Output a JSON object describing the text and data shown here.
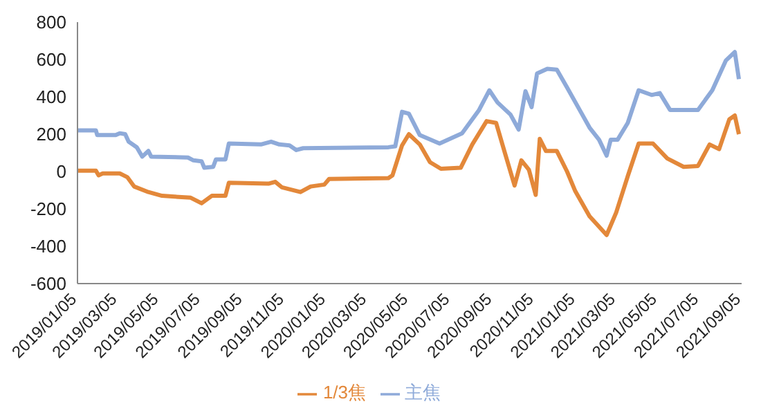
{
  "chart_data": {
    "type": "line",
    "ylim": [
      -600,
      800
    ],
    "yticks": [
      -600,
      -400,
      -200,
      0,
      200,
      400,
      600,
      800
    ],
    "xlim": [
      "2019-01-05",
      "2021-09-05"
    ],
    "xticks": [
      {
        "value": "2019-01-05",
        "label": "2019/01/05"
      },
      {
        "value": "2019-03-05",
        "label": "2019/03/05"
      },
      {
        "value": "2019-05-05",
        "label": "2019/05/05"
      },
      {
        "value": "2019-07-05",
        "label": "2019/07/05"
      },
      {
        "value": "2019-09-05",
        "label": "2019/09/05"
      },
      {
        "value": "2019-11-05",
        "label": "2019/11/05"
      },
      {
        "value": "2020-01-05",
        "label": "2020/01/05"
      },
      {
        "value": "2020-03-05",
        "label": "2020/03/05"
      },
      {
        "value": "2020-05-05",
        "label": "2020/05/05"
      },
      {
        "value": "2020-07-05",
        "label": "2020/07/05"
      },
      {
        "value": "2020-09-05",
        "label": "2020/09/05"
      },
      {
        "value": "2020-11-05",
        "label": "2020/11/05"
      },
      {
        "value": "2021-01-05",
        "label": "2021/01/05"
      },
      {
        "value": "2021-03-05",
        "label": "2021/03/05"
      },
      {
        "value": "2021-05-05",
        "label": "2021/05/05"
      },
      {
        "value": "2021-07-05",
        "label": "2021/07/05"
      },
      {
        "value": "2021-09-05",
        "label": "2021/09/05"
      }
    ],
    "grid": false,
    "legend": "bottom",
    "series": [
      {
        "name": "1/3焦",
        "color": "#e3883a",
        "x": [
          "2019-01-05",
          "2019-02-01",
          "2019-02-05",
          "2019-02-11",
          "2019-03-08",
          "2019-03-19",
          "2019-03-29",
          "2019-04-19",
          "2019-05-09",
          "2019-06-20",
          "2019-07-06",
          "2019-07-21",
          "2019-08-10",
          "2019-08-15",
          "2019-10-12",
          "2019-10-22",
          "2019-11-01",
          "2019-11-28",
          "2019-12-13",
          "2020-01-02",
          "2020-01-09",
          "2020-04-05",
          "2020-04-11",
          "2020-04-25",
          "2020-05-05",
          "2020-05-21",
          "2020-06-05",
          "2020-06-21",
          "2020-07-20",
          "2020-08-06",
          "2020-08-27",
          "2020-09-10",
          "2020-09-22",
          "2020-10-07",
          "2020-10-17",
          "2020-10-28",
          "2020-11-07",
          "2020-11-13",
          "2020-11-22",
          "2020-12-08",
          "2020-12-23",
          "2021-01-04",
          "2021-01-25",
          "2021-02-04",
          "2021-02-19",
          "2021-03-05",
          "2021-03-22",
          "2021-04-07",
          "2021-04-28",
          "2021-05-19",
          "2021-06-12",
          "2021-07-03",
          "2021-07-20",
          "2021-08-03",
          "2021-08-18",
          "2021-08-26",
          "2021-09-01"
        ],
        "values": [
          5,
          5,
          -20,
          -10,
          -10,
          -30,
          -80,
          -110,
          -130,
          -140,
          -170,
          -130,
          -130,
          -60,
          -65,
          -55,
          -85,
          -110,
          -80,
          -70,
          -40,
          -35,
          -20,
          140,
          200,
          145,
          50,
          15,
          20,
          145,
          270,
          260,
          110,
          -75,
          60,
          10,
          -125,
          175,
          110,
          110,
          0,
          -105,
          -240,
          -280,
          -340,
          -220,
          -25,
          150,
          150,
          70,
          25,
          30,
          145,
          120,
          280,
          300,
          200
        ]
      },
      {
        "name": "主焦",
        "color": "#8eaad9",
        "x": [
          "2019-01-05",
          "2019-02-01",
          "2019-02-03",
          "2019-03-02",
          "2019-03-08",
          "2019-03-16",
          "2019-03-21",
          "2019-04-02",
          "2019-04-10",
          "2019-04-19",
          "2019-04-23",
          "2019-06-16",
          "2019-06-24",
          "2019-07-06",
          "2019-07-10",
          "2019-07-23",
          "2019-07-27",
          "2019-08-10",
          "2019-08-15",
          "2019-10-01",
          "2019-10-16",
          "2019-10-28",
          "2019-11-12",
          "2019-11-22",
          "2019-12-02",
          "2020-04-05",
          "2020-04-15",
          "2020-04-25",
          "2020-05-05",
          "2020-05-21",
          "2020-06-19",
          "2020-07-22",
          "2020-08-16",
          "2020-08-31",
          "2020-09-12",
          "2020-10-01",
          "2020-10-13",
          "2020-10-23",
          "2020-11-01",
          "2020-11-09",
          "2020-11-24",
          "2020-12-08",
          "2020-12-23",
          "2021-01-12",
          "2021-01-25",
          "2021-02-08",
          "2021-02-19",
          "2021-02-25",
          "2021-03-07",
          "2021-03-22",
          "2021-04-07",
          "2021-04-26",
          "2021-05-08",
          "2021-05-23",
          "2021-06-12",
          "2021-07-03",
          "2021-07-24",
          "2021-08-13",
          "2021-08-26",
          "2021-09-01"
        ],
        "values": [
          220,
          220,
          195,
          195,
          205,
          200,
          160,
          130,
          80,
          110,
          80,
          75,
          60,
          55,
          20,
          25,
          65,
          65,
          150,
          145,
          160,
          145,
          140,
          115,
          125,
          130,
          135,
          320,
          310,
          195,
          150,
          205,
          330,
          435,
          370,
          305,
          225,
          430,
          345,
          525,
          550,
          545,
          450,
          320,
          235,
          170,
          85,
          170,
          170,
          260,
          435,
          410,
          420,
          330,
          330,
          330,
          435,
          595,
          640,
          495
        ]
      }
    ]
  }
}
